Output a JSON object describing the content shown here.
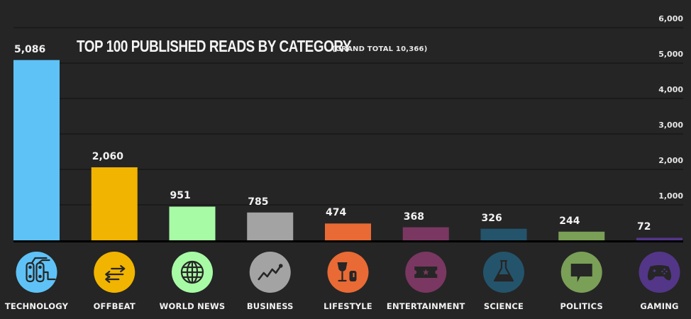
{
  "chart_data": {
    "type": "bar",
    "title": "TOP 100 PUBLISHED READS BY CATEGORY",
    "subtitle": "(GRAND TOTAL 10,366)",
    "xlabel": "",
    "ylabel": "",
    "ylim": [
      0,
      6000
    ],
    "grid": true,
    "y_axis_position": "right",
    "y_ticks": [
      1000,
      2000,
      3000,
      4000,
      5000,
      6000
    ],
    "y_tick_labels": [
      "1,000",
      "2,000",
      "3,000",
      "4,000",
      "5,000",
      "6,000"
    ],
    "categories": [
      "TECHNOLOGY",
      "OFFBEAT",
      "WORLD NEWS",
      "BUSINESS",
      "LIFESTYLE",
      "ENTERTAINMENT",
      "SCIENCE",
      "POLITICS",
      "GAMING"
    ],
    "values": [
      5086,
      2060,
      951,
      785,
      474,
      368,
      326,
      244,
      72
    ],
    "value_labels": [
      "5,086",
      "2,060",
      "951",
      "785",
      "474",
      "368",
      "326",
      "244",
      "72"
    ],
    "colors": [
      "#5ec2f7",
      "#f1b400",
      "#a8fba5",
      "#a3a3a3",
      "#e96a35",
      "#7a3761",
      "#24546b",
      "#7a9f57",
      "#533688"
    ],
    "icons": [
      "circuit-board-icon",
      "arrows-exchange-icon",
      "globe-icon",
      "trend-line-icon",
      "wine-glass-can-icon",
      "ticket-star-icon",
      "flask-icon",
      "speech-bubble-icon",
      "gamepad-icon"
    ]
  }
}
